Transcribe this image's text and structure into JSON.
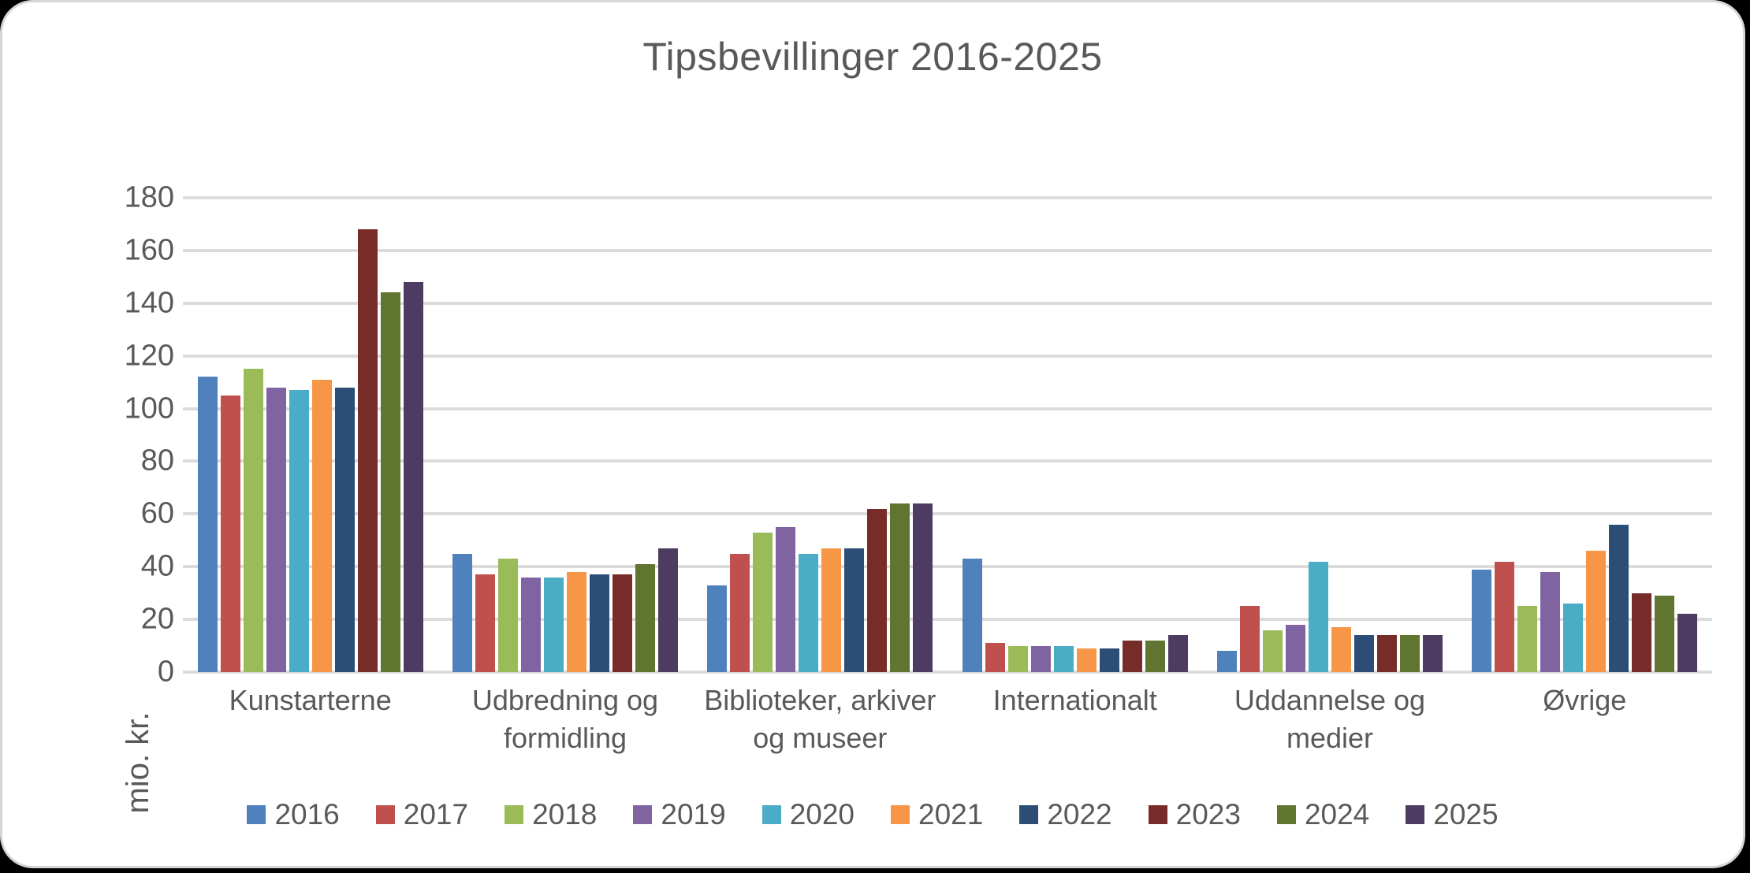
{
  "chart_data": {
    "type": "bar",
    "title": "Tipsbevillinger 2016-2025",
    "xlabel": "",
    "ylabel": "mio. kr.",
    "ylim": [
      0,
      180
    ],
    "ytick_step": 20,
    "grid": true,
    "legend_position": "bottom",
    "categories": [
      "Kunstarterne",
      "Udbredning og formidling",
      "Biblioteker, arkiver og museer",
      "Internationalt",
      "Uddannelse og medier",
      "Øvrige"
    ],
    "series": [
      {
        "name": "2016",
        "color": "#4F81BD",
        "values": [
          112,
          45,
          33,
          43,
          8,
          39
        ]
      },
      {
        "name": "2017",
        "color": "#C0504D",
        "values": [
          105,
          37,
          45,
          11,
          25,
          42
        ]
      },
      {
        "name": "2018",
        "color": "#9BBB59",
        "values": [
          115,
          43,
          53,
          10,
          16,
          25
        ]
      },
      {
        "name": "2019",
        "color": "#8064A2",
        "values": [
          108,
          36,
          55,
          10,
          18,
          38
        ]
      },
      {
        "name": "2020",
        "color": "#4BACC6",
        "values": [
          107,
          36,
          45,
          10,
          42,
          26
        ]
      },
      {
        "name": "2021",
        "color": "#F79646",
        "values": [
          111,
          38,
          47,
          9,
          17,
          46
        ]
      },
      {
        "name": "2022",
        "color": "#2C4D75",
        "values": [
          108,
          37,
          47,
          9,
          14,
          56
        ]
      },
      {
        "name": "2023",
        "color": "#772C2A",
        "values": [
          168,
          37,
          62,
          12,
          14,
          30
        ]
      },
      {
        "name": "2024",
        "color": "#5F7530",
        "values": [
          144,
          41,
          64,
          12,
          14,
          29
        ]
      },
      {
        "name": "2025",
        "color": "#4D3B62",
        "values": [
          148,
          47,
          64,
          14,
          14,
          22
        ]
      }
    ]
  },
  "style": {
    "text_color": "#595959",
    "gridline_color": "#dcdcdc",
    "card_border_color": "#d6d6d6",
    "background_color": "#ffffff"
  }
}
